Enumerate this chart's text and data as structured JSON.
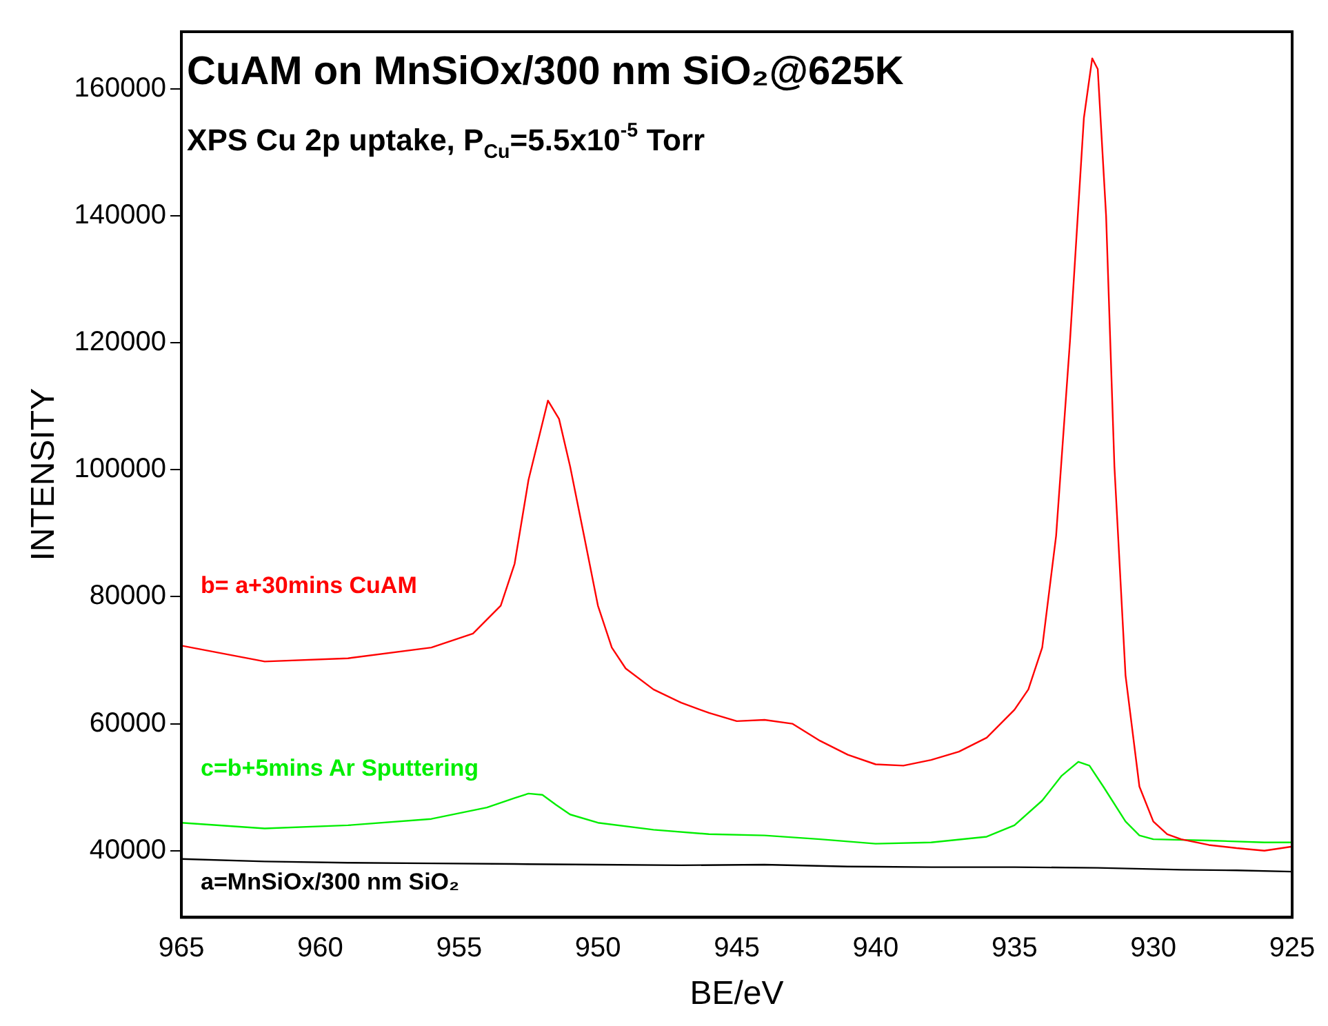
{
  "chart_data": {
    "type": "line",
    "title": "CuAM on MnSiOx/300 nm SiO₂@625K",
    "subtitle": "XPS Cu 2p uptake, P$_{Cu}$=5.5x10$^{-5}$ Torr",
    "xlabel": "BE/eV",
    "ylabel": "INTENSITY",
    "xlim": [
      965,
      925
    ],
    "xticks": [
      965,
      960,
      955,
      950,
      945,
      940,
      935,
      930,
      925
    ],
    "ylim": [
      29500,
      169000
    ],
    "yticks": [
      40000,
      60000,
      80000,
      100000,
      120000,
      140000,
      160000
    ],
    "grid": false,
    "legend": false,
    "marker": "none",
    "line_style": "solid",
    "series": [
      {
        "name": "a=MnSiOx/300 nm SiO₂",
        "color": "#000000",
        "x": [
          965,
          962,
          959,
          956,
          953,
          950,
          947,
          944,
          941,
          938,
          935,
          932,
          929,
          927,
          925
        ],
        "values": [
          38700,
          38300,
          38100,
          38000,
          37900,
          37800,
          37700,
          37800,
          37500,
          37400,
          37400,
          37300,
          37000,
          36900,
          36700
        ]
      },
      {
        "name": "b= a+30mins CuAM",
        "color": "#ff0000",
        "x": [
          965,
          962,
          959,
          956,
          954.5,
          953.5,
          953,
          952.5,
          951.8,
          951.4,
          951,
          950.5,
          950,
          949.5,
          949,
          948,
          947,
          946,
          945,
          944,
          943,
          942,
          941,
          940,
          939,
          938,
          937,
          936,
          935,
          934.5,
          934,
          933.5,
          933,
          932.5,
          932.2,
          932,
          931.7,
          931.4,
          931,
          930.5,
          930,
          929.5,
          929,
          928,
          927,
          926,
          925
        ],
        "values": [
          72300,
          69800,
          70300,
          72000,
          74200,
          78600,
          85200,
          98400,
          110900,
          108000,
          100500,
          89600,
          78600,
          72000,
          68700,
          65400,
          63300,
          61700,
          60400,
          60600,
          60000,
          57300,
          55100,
          53600,
          53400,
          54300,
          55600,
          57800,
          62200,
          65400,
          72000,
          89600,
          120300,
          155400,
          164800,
          163100,
          140000,
          100500,
          67600,
          50100,
          44600,
          42600,
          41800,
          40900,
          40400,
          40000,
          40650
        ]
      },
      {
        "name": "c=b+5mins Ar Sputtering",
        "color": "#00ee00",
        "x": [
          965,
          962,
          959,
          956,
          954,
          953,
          952.5,
          952,
          951.5,
          951,
          950,
          948,
          946,
          944,
          942,
          940,
          938,
          936,
          935,
          934,
          933.3,
          932.7,
          932.3,
          931.8,
          931,
          930.5,
          930,
          928,
          926,
          925
        ],
        "values": [
          44400,
          43500,
          44000,
          45000,
          46800,
          48300,
          49000,
          48800,
          47200,
          45700,
          44400,
          43300,
          42600,
          42400,
          41800,
          41100,
          41300,
          42200,
          44000,
          47900,
          51800,
          54000,
          53400,
          50100,
          44600,
          42400,
          41800,
          41600,
          41300,
          41300
        ]
      }
    ]
  }
}
